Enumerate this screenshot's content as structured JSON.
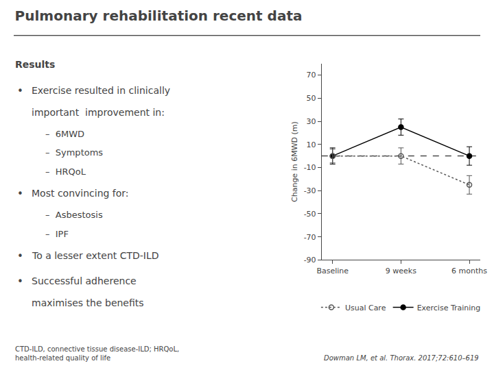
{
  "chart_data": {
    "type": "line",
    "title": "Pulmonary rehabilitation recent data",
    "ylabel": "Change in 6MWD (m)",
    "categories": [
      "Baseline",
      "9 weeks",
      "6 months"
    ],
    "series": [
      {
        "name": "Exercise Training",
        "color": "#000000",
        "values": [
          0,
          25,
          0
        ],
        "errors": [
          7,
          7,
          8
        ],
        "marker": "circle",
        "line_style": "solid"
      },
      {
        "name": "Usual Care",
        "color": "#555555",
        "values": [
          0,
          0,
          -25
        ],
        "errors": [
          6,
          7,
          8
        ],
        "marker": "circle-open",
        "line_style": "dotted"
      }
    ],
    "reference_line": 0,
    "ylim": [
      -90,
      80
    ],
    "yticks": [
      -90,
      -70,
      -50,
      -30,
      -10,
      10,
      30,
      50,
      70
    ],
    "grid": false,
    "legend": "bottom",
    "annotations": {
      "heading": "Results",
      "bullet": "•",
      "bullets": [
        {
          "lines": [
            "Exercise resulted in clinically",
            "important  improvement in:"
          ],
          "sub": [
            "–  6MWD",
            "–  Symptoms",
            "–  HRQoL"
          ]
        },
        {
          "lines": [
            "Most convincing for:"
          ],
          "sub": [
            "–  Asbestosis",
            "–  IPF"
          ]
        },
        {
          "lines": [
            "To a lesser extent CTD-ILD"
          ],
          "sub": []
        },
        {
          "lines": [
            "Successful adherence",
            "maximises the benefits"
          ],
          "sub": []
        }
      ],
      "footnotes": [
        "CTD-ILD, connective tissue disease-ILD; HRQoL,\nhealth-related quality of life",
        "Dowman LM, et al. Thorax. 2017;72:610–619"
      ]
    }
  }
}
